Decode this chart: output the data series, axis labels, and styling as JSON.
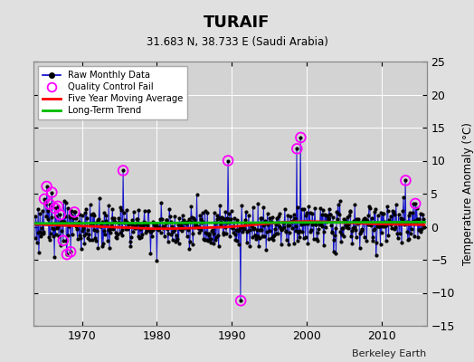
{
  "title": "TURAIF",
  "subtitle": "31.683 N, 38.733 E (Saudi Arabia)",
  "ylabel": "Temperature Anomaly (°C)",
  "credit": "Berkeley Earth",
  "ylim": [
    -15,
    25
  ],
  "yticks": [
    -15,
    -10,
    -5,
    0,
    5,
    10,
    15,
    20,
    25
  ],
  "xlim": [
    1963.5,
    2016
  ],
  "xticks": [
    1970,
    1980,
    1990,
    2000,
    2010
  ],
  "bg_color": "#e0e0e0",
  "plot_bg_color": "#d3d3d3",
  "grid_color": "#ffffff",
  "raw_line_color": "#0000cc",
  "raw_dot_color": "#000000",
  "qc_fail_color": "#ff00ff",
  "moving_avg_color": "#ff0000",
  "trend_color": "#00bb00",
  "seed": 123,
  "n_months": 624,
  "x_start_year": 1963.75,
  "qc_fail_points": [
    [
      1965.0,
      4.2
    ],
    [
      1965.3,
      6.1
    ],
    [
      1965.7,
      3.4
    ],
    [
      1966.0,
      5.2
    ],
    [
      1966.4,
      2.8
    ],
    [
      1966.8,
      3.1
    ],
    [
      1967.1,
      1.8
    ],
    [
      1967.5,
      -2.1
    ],
    [
      1968.0,
      -4.2
    ],
    [
      1968.5,
      -3.8
    ],
    [
      1969.0,
      2.2
    ],
    [
      1975.5,
      8.5
    ],
    [
      1989.5,
      10.0
    ],
    [
      1991.2,
      -11.2
    ],
    [
      1998.7,
      11.8
    ],
    [
      1999.2,
      13.5
    ],
    [
      2013.2,
      7.0
    ],
    [
      2014.5,
      3.5
    ]
  ],
  "moving_avg_x": [
    1965,
    1970,
    1975,
    1980,
    1985,
    1990,
    1995,
    2000,
    2005,
    2010,
    2015
  ],
  "moving_avg_y": [
    0.3,
    0.1,
    -0.1,
    -0.3,
    -0.2,
    0.0,
    0.5,
    0.8,
    0.6,
    0.4,
    0.3
  ],
  "trend_x": [
    1963.75,
    2015.75
  ],
  "trend_y": [
    0.5,
    0.7
  ]
}
